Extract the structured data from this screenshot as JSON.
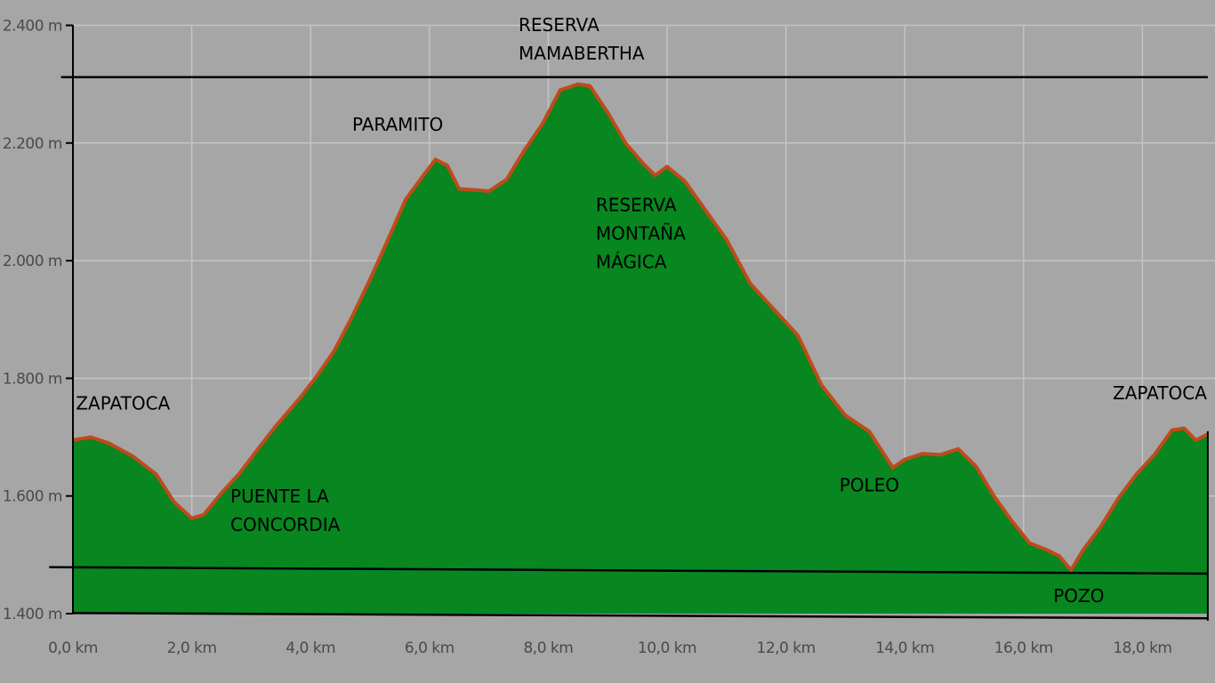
{
  "chart_data": {
    "type": "area",
    "title": "",
    "xlabel": "",
    "ylabel": "",
    "xlim": [
      0,
      19.1
    ],
    "ylim": [
      1400,
      2400
    ],
    "grid": true,
    "colors": {
      "fill": "#08861f",
      "line": "#c04a1a",
      "grid": "#c4c4c4",
      "background": "#a6a6a6",
      "ref_line": "#000000"
    },
    "x_ticks": [
      0,
      2,
      4,
      6,
      8,
      10,
      12,
      14,
      16,
      18
    ],
    "x_tick_labels": [
      "0,0 km",
      "2,0 km",
      "4,0 km",
      "6,0 km",
      "8,0 km",
      "10,0 km",
      "12,0 km",
      "14,0 km",
      "16,0 km",
      "18,0 km"
    ],
    "y_ticks": [
      1400,
      1600,
      1800,
      2000,
      2200,
      2400
    ],
    "y_tick_labels": [
      "1.400 m",
      "1.600 m",
      "1.800 m",
      "2.000 m",
      "2.200 m",
      "2.400 m"
    ],
    "series": [
      {
        "x": [
          0,
          0.3,
          0.6,
          1.0,
          1.4,
          1.7,
          2.0,
          2.2,
          2.5,
          2.8,
          3.1,
          3.4,
          3.8,
          4.1,
          4.4,
          4.7,
          5.0,
          5.3,
          5.6,
          5.9,
          6.1,
          6.3,
          6.5,
          6.8,
          7.0,
          7.3,
          7.6,
          7.9,
          8.2,
          8.5,
          8.7,
          9.0,
          9.3,
          9.6,
          9.8,
          10.0,
          10.3,
          10.6,
          11.0,
          11.4,
          11.8,
          12.2,
          12.6,
          13.0,
          13.4,
          13.8,
          14.0,
          14.3,
          14.6,
          14.9,
          15.2,
          15.5,
          15.8,
          16.1,
          16.4,
          16.6,
          16.8,
          17.0,
          17.3,
          17.6,
          17.9,
          18.2,
          18.5,
          18.7,
          18.9,
          19.1
        ],
        "y": [
          1695,
          1700,
          1690,
          1668,
          1637,
          1590,
          1562,
          1568,
          1605,
          1638,
          1678,
          1717,
          1764,
          1803,
          1847,
          1905,
          1968,
          2035,
          2104,
          2145,
          2172,
          2162,
          2122,
          2120,
          2118,
          2138,
          2188,
          2232,
          2290,
          2300,
          2297,
          2252,
          2200,
          2165,
          2145,
          2160,
          2135,
          2092,
          2036,
          1961,
          1917,
          1873,
          1788,
          1737,
          1710,
          1648,
          1662,
          1672,
          1670,
          1680,
          1650,
          1600,
          1558,
          1520,
          1508,
          1498,
          1474,
          1508,
          1548,
          1597,
          1637,
          1670,
          1712,
          1715,
          1695,
          1705
        ]
      }
    ],
    "reference_lines": [
      {
        "x1": -0.2,
        "y1": 2312,
        "x2": 19.1,
        "y2": 2312
      },
      {
        "x1": -0.4,
        "y1": 1479,
        "x2": 19.1,
        "y2": 1468
      },
      {
        "x1": 0,
        "y1": 1401,
        "x2": 19.1,
        "y2": 1392
      }
    ],
    "annotations": [
      {
        "lines": [
          "ZAPATOCA"
        ],
        "x": 0.05,
        "y": 1747
      },
      {
        "lines": [
          "PUENTE LA",
          "CONCORDIA"
        ],
        "x": 2.65,
        "y": 1589
      },
      {
        "lines": [
          "PARAMITO"
        ],
        "x": 4.7,
        "y": 2221
      },
      {
        "lines": [
          "RESERVA",
          "MAMABERTHA"
        ],
        "x": 7.5,
        "y": 2390
      },
      {
        "lines": [
          "RESERVA",
          "MONTAÑA",
          "MÁGICA"
        ],
        "x": 8.8,
        "y": 2084
      },
      {
        "lines": [
          "POLEO"
        ],
        "x": 12.9,
        "y": 1608
      },
      {
        "lines": [
          "POZO"
        ],
        "x": 16.5,
        "y": 1420
      },
      {
        "lines": [
          "ZAPATOCA"
        ],
        "x": 17.5,
        "y": 1764
      }
    ]
  }
}
